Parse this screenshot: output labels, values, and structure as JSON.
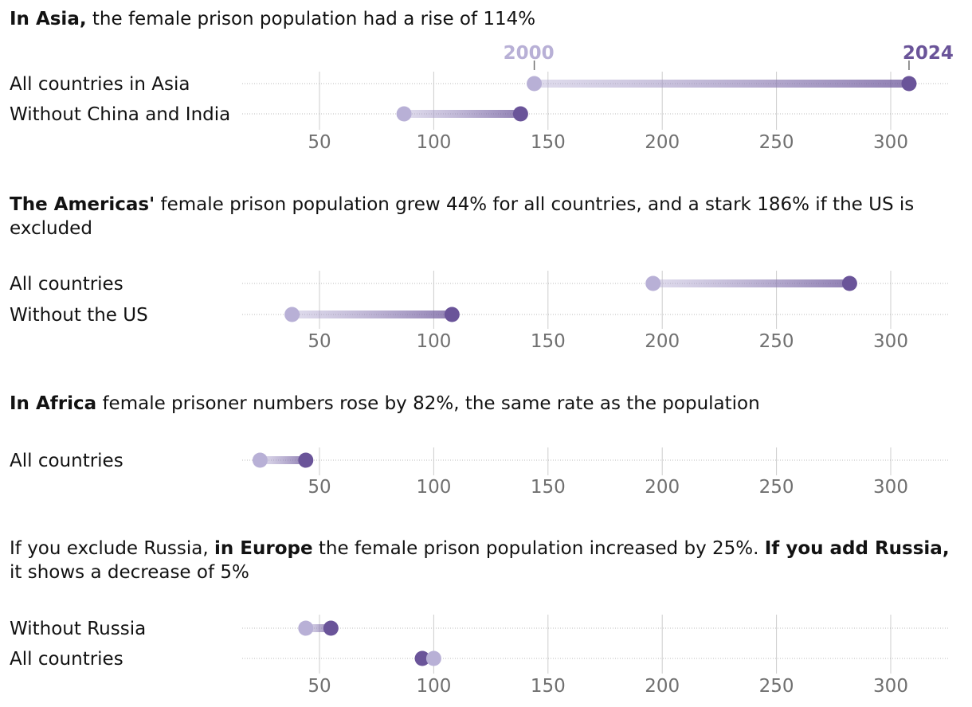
{
  "colors": {
    "start": "#b8b0d6",
    "end": "#6a5499",
    "grid": "#cccccc",
    "dotline": "#bbbbbb",
    "tick": "#707070"
  },
  "legend": {
    "start_year": "2000",
    "end_year": "2024"
  },
  "panels": [
    {
      "title_parts": [
        {
          "text": "In Asia,",
          "bold": true
        },
        {
          "text": " the female prison population had a rise of 114%",
          "bold": false
        }
      ]
    },
    {
      "title_parts": [
        {
          "text": "The Americas'",
          "bold": true
        },
        {
          "text": " female prison population grew 44% for all countries, and a stark 186% if the US is excluded",
          "bold": false
        }
      ]
    },
    {
      "title_parts": [
        {
          "text": "In Africa",
          "bold": true
        },
        {
          "text": " female prisoner numbers rose by 82%, the same rate as the population",
          "bold": false
        }
      ]
    },
    {
      "title_parts": [
        {
          "text": "If you exclude Russia, ",
          "bold": false
        },
        {
          "text": "in Europe",
          "bold": true
        },
        {
          "text": " the female prison population increased by 25%. ",
          "bold": false
        },
        {
          "text": "If you add Russia,",
          "bold": true
        },
        {
          "text": " it shows a decrease of 5%",
          "bold": false
        }
      ]
    }
  ],
  "chart_data": [
    {
      "type": "dumbbell",
      "title": "In Asia, the female prison population had a rise of 114%",
      "xticks": [
        50,
        100,
        150,
        200,
        250,
        300
      ],
      "xlim": [
        20,
        325
      ],
      "series_names": [
        "2000",
        "2024"
      ],
      "rows": [
        {
          "label": "All countries in Asia",
          "start": 144,
          "end": 308
        },
        {
          "label": "Without China and India",
          "start": 87,
          "end": 138
        }
      ]
    },
    {
      "type": "dumbbell",
      "title": "The Americas' female prison population grew 44% for all countries, and a stark 186% if the US is excluded",
      "xticks": [
        50,
        100,
        150,
        200,
        250,
        300
      ],
      "xlim": [
        20,
        325
      ],
      "series_names": [
        "2000",
        "2024"
      ],
      "rows": [
        {
          "label": "All countries",
          "start": 196,
          "end": 282
        },
        {
          "label": "Without the US",
          "start": 38,
          "end": 108
        }
      ]
    },
    {
      "type": "dumbbell",
      "title": "In Africa female prisoner numbers rose by 82%, the same rate as the population",
      "xticks": [
        50,
        100,
        150,
        200,
        250,
        300
      ],
      "xlim": [
        20,
        325
      ],
      "series_names": [
        "2000",
        "2024"
      ],
      "rows": [
        {
          "label": "All countries",
          "start": 24,
          "end": 44
        }
      ]
    },
    {
      "type": "dumbbell",
      "title": "If you exclude Russia, in Europe the female prison population increased by 25%. If you add Russia, it shows a decrease of 5%",
      "xticks": [
        50,
        100,
        150,
        200,
        250,
        300
      ],
      "xlim": [
        20,
        325
      ],
      "series_names": [
        "2000",
        "2024"
      ],
      "rows": [
        {
          "label": "Without Russia",
          "start": 44,
          "end": 55
        },
        {
          "label": "All countries",
          "start": 100,
          "end": 95
        }
      ]
    }
  ]
}
